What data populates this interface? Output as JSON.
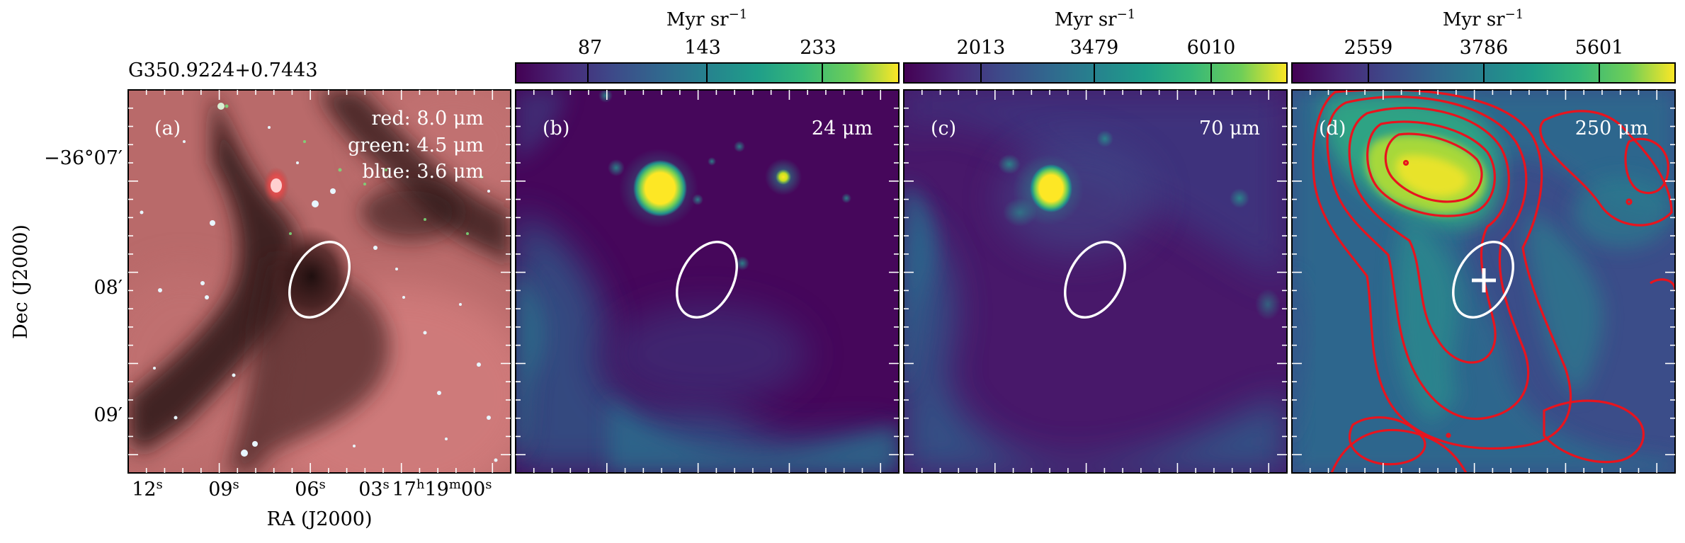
{
  "figure": {
    "source_name": "G350.9224+0.7443",
    "y_axis_label": "Dec (J2000)",
    "x_axis_label": "RA (J2000)",
    "dec_ticks": [
      "−36°07′",
      "08′",
      "09′"
    ],
    "ra_ticks": [
      {
        "main": "12",
        "sup": "s"
      },
      {
        "main": "09",
        "sup": "s"
      },
      {
        "main": "06",
        "sup": "s"
      },
      {
        "main": "03",
        "sup": "s"
      },
      {
        "main": "17",
        "sup": "h",
        "main2": "19",
        "sup2": "m",
        "main3": "00",
        "sup3": "s"
      }
    ]
  },
  "panels": [
    {
      "id": "a",
      "tag": "(a)",
      "legend": [
        {
          "label": "red: 8.0 μm"
        },
        {
          "label": "green: 4.5 μm"
        },
        {
          "label": "blue: 3.6 μm"
        }
      ]
    },
    {
      "id": "b",
      "tag": "(b)",
      "wavelength": "24 μm",
      "colorbar": {
        "unit": "Myr sr",
        "unit_sup": "−1",
        "ticks": [
          "87",
          "143",
          "233"
        ]
      }
    },
    {
      "id": "c",
      "tag": "(c)",
      "wavelength": "70 μm",
      "colorbar": {
        "unit": "Myr sr",
        "unit_sup": "−1",
        "ticks": [
          "2013",
          "3479",
          "6010"
        ]
      }
    },
    {
      "id": "d",
      "tag": "(d)",
      "wavelength": "250 μm",
      "colorbar": {
        "unit": "Myr sr",
        "unit_sup": "−1",
        "ticks": [
          "2559",
          "3786",
          "5601"
        ]
      }
    }
  ],
  "colors": {
    "viridis_dark": "#440154",
    "viridis_mid": "#21918c",
    "viridis_bright": "#fde725",
    "contour": "#e8141e",
    "ellipse": "#ffffff"
  }
}
